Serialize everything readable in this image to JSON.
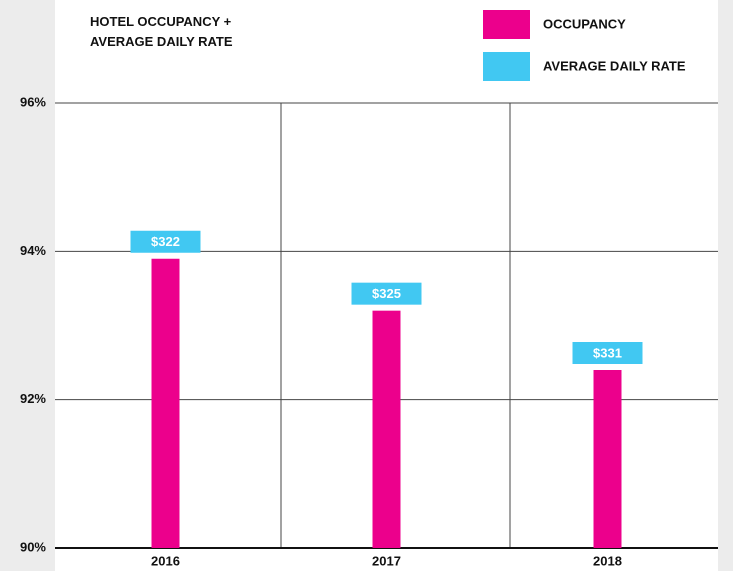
{
  "chart_data": {
    "type": "bar",
    "title": "HOTEL OCCUPANCY + AVERAGE DAILY RATE",
    "categories": [
      "2016",
      "2017",
      "2018"
    ],
    "series": [
      {
        "name": "OCCUPANCY",
        "color": "#ec008c",
        "values": [
          93.9,
          93.2,
          92.4
        ]
      },
      {
        "name": "AVERAGE DAILY RATE",
        "color": "#41c8f2",
        "values": [
          322,
          325,
          331
        ],
        "value_labels": [
          "$322",
          "$325",
          "$331"
        ]
      }
    ],
    "ylim": [
      90,
      96
    ],
    "yticks": [
      {
        "value": 90,
        "label": "90%"
      },
      {
        "value": 92,
        "label": "92%"
      },
      {
        "value": 94,
        "label": "94%"
      },
      {
        "value": 96,
        "label": "96%"
      }
    ],
    "grid": true,
    "legend": "top-right"
  }
}
